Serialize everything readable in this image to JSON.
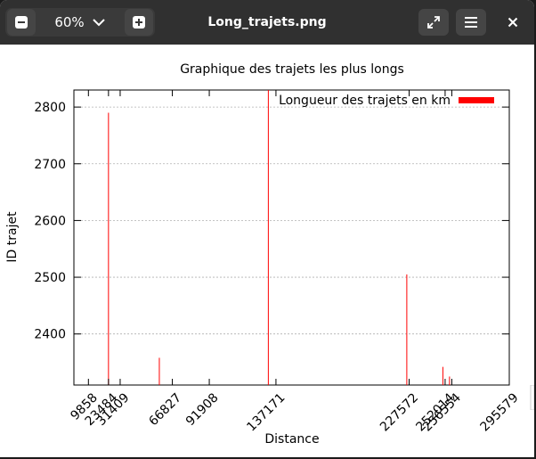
{
  "window": {
    "title": "Long_trajets.png",
    "zoom_level": "60%"
  },
  "icons": {
    "zoom_out": "minus-icon",
    "zoom_menu": "chevron-down-icon",
    "zoom_in": "plus-icon",
    "fullscreen": "expand-icon",
    "menu": "hamburger-menu-icon",
    "close": "close-icon"
  },
  "chart_data": {
    "type": "bar",
    "title": "Graphique des trajets les plus longs",
    "xlabel": "Distance",
    "ylabel": "ID trajet",
    "legend": {
      "label": "Longueur des trajets en km",
      "placement": "top-right",
      "color": "#ff0000"
    },
    "x_tick_labels": [
      "9858",
      "23484",
      "31409",
      "66827",
      "91908",
      "137171",
      "227572",
      "252014",
      "256554",
      "295579"
    ],
    "x_tick_values": [
      9858,
      23484,
      31409,
      66827,
      91908,
      137171,
      227572,
      252014,
      256554,
      295579
    ],
    "xlim": [
      0,
      295579
    ],
    "y_ticks": [
      2400,
      2500,
      2600,
      2700,
      2800
    ],
    "ylim": [
      2310,
      2830
    ],
    "grid": "horizontal-dashed",
    "bar_color": "#ff0000",
    "bars": [
      {
        "x": 23484,
        "y": 2790
      },
      {
        "x": 58000,
        "y": 2358
      },
      {
        "x": 132000,
        "y": 2830
      },
      {
        "x": 226000,
        "y": 2505
      },
      {
        "x": 250500,
        "y": 2342
      },
      {
        "x": 255000,
        "y": 2325
      }
    ]
  }
}
